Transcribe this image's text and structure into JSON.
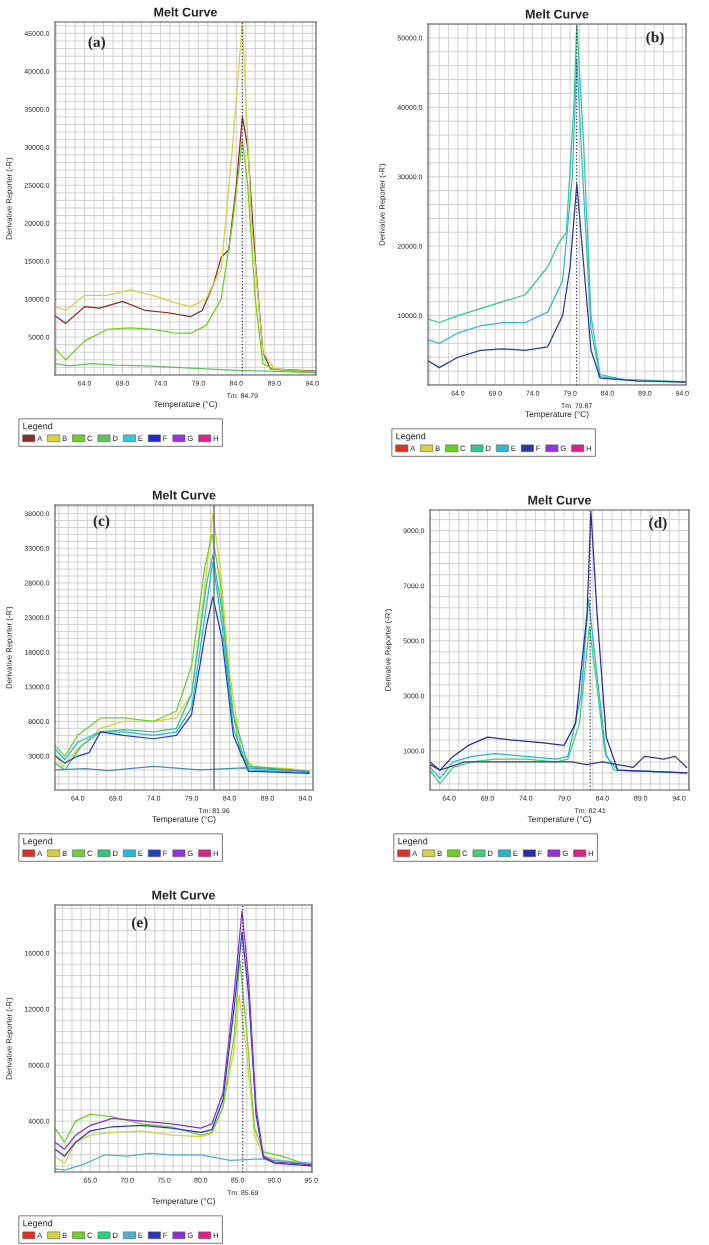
{
  "chart_data": [
    {
      "type": "line",
      "title": "Melt Curve",
      "xlabel": "Temperature (°C)",
      "ylabel": "Derivative Reporter (-R')",
      "legend_title": "Legend",
      "annotations": [
        "(a)"
      ],
      "grid": true,
      "legend": "bottom",
      "xlim": [
        60.1,
        94.5
      ],
      "ylim": [
        0,
        46500
      ],
      "xticks": [
        {
          "value": 64,
          "label": "64.0"
        },
        {
          "value": 69,
          "label": "69.0"
        },
        {
          "value": 74,
          "label": "74.0"
        },
        {
          "value": 79,
          "label": "79.0"
        },
        {
          "value": 84,
          "label": "84.0"
        },
        {
          "value": 89,
          "label": "89.0"
        },
        {
          "value": 94,
          "label": "94.0"
        }
      ],
      "yticks": [
        {
          "value": 5000,
          "label": "5000.0"
        },
        {
          "value": 10000,
          "label": "10000.0"
        },
        {
          "value": 15000,
          "label": "15000.0"
        },
        {
          "value": 20000,
          "label": "20000.0"
        },
        {
          "value": 25000,
          "label": "25000.0"
        },
        {
          "value": 30000,
          "label": "30000.0"
        },
        {
          "value": 35000,
          "label": "35000.0"
        },
        {
          "value": 40000,
          "label": "40000.0"
        },
        {
          "value": 45000,
          "label": "45000.0"
        }
      ],
      "ref_lines": [
        {
          "axis": "x",
          "value": 84.79,
          "label": "Tm: 84.79",
          "line_style": "dotted",
          "color": "#333366"
        }
      ],
      "series": [
        {
          "name": "A",
          "color": "#8b2a2a",
          "x": [
            60.1,
            61.5,
            64,
            66,
            69,
            72,
            75,
            78,
            79.5,
            81,
            82,
            83,
            84,
            84.8,
            85.5,
            86.5,
            87.5,
            88.5,
            94.5
          ],
          "values": [
            7800,
            6800,
            9000,
            8800,
            9700,
            8500,
            8200,
            7700,
            8500,
            12000,
            15500,
            16500,
            25000,
            34000,
            30000,
            15000,
            3000,
            800,
            500
          ]
        },
        {
          "name": "B",
          "color": "#d8d040",
          "x": [
            60.1,
            61.5,
            64,
            67,
            70,
            73,
            76,
            78,
            80,
            82,
            83.5,
            84.8,
            86,
            87.5,
            89,
            94.5
          ],
          "values": [
            9000,
            8500,
            10500,
            10500,
            11200,
            10500,
            9500,
            9000,
            10000,
            14000,
            30000,
            46500,
            20000,
            3000,
            800,
            400
          ]
        },
        {
          "name": "C",
          "color": "#6cd020",
          "x": [
            60.1,
            61.5,
            64,
            67,
            70,
            73,
            76,
            78,
            80,
            82,
            83.5,
            84.8,
            85.5,
            86.5,
            87.5,
            89,
            94.5
          ],
          "values": [
            3500,
            2000,
            4500,
            6000,
            6200,
            6000,
            5500,
            5500,
            6500,
            10000,
            20000,
            31000,
            25000,
            10000,
            1500,
            700,
            300
          ]
        },
        {
          "name": "D",
          "color": "#60c060",
          "x": [
            60.1,
            62,
            65,
            68,
            72,
            76,
            80,
            84,
            88,
            94.5
          ],
          "values": [
            1500,
            1200,
            1500,
            1300,
            1200,
            1000,
            800,
            600,
            500,
            300
          ]
        },
        {
          "name": "E",
          "color": "#30c8e8"
        },
        {
          "name": "F",
          "color": "#1c2ad0"
        },
        {
          "name": "G",
          "color": "#9a30e0"
        },
        {
          "name": "H",
          "color": "#e0208a"
        }
      ]
    },
    {
      "type": "line",
      "title": "Melt Curve",
      "xlabel": "Temperature (°C)",
      "ylabel": "Derivative Reporter (-R')",
      "legend_title": "Legend",
      "annotations": [
        "(b)"
      ],
      "grid": true,
      "legend": "bottom",
      "xlim": [
        60,
        94.5
      ],
      "ylim": [
        0,
        52000
      ],
      "xticks": [
        {
          "value": 64,
          "label": "64.0"
        },
        {
          "value": 69,
          "label": "69.0"
        },
        {
          "value": 74,
          "label": "74.0"
        },
        {
          "value": 79,
          "label": "79.0"
        },
        {
          "value": 84,
          "label": "84.0"
        },
        {
          "value": 89,
          "label": "89.0"
        },
        {
          "value": 94,
          "label": "94.0"
        }
      ],
      "yticks": [
        {
          "value": 10000,
          "label": "10000.0"
        },
        {
          "value": 20000,
          "label": "20000.0"
        },
        {
          "value": 30000,
          "label": "30000.0"
        },
        {
          "value": 40000,
          "label": "40000.0"
        },
        {
          "value": 50000,
          "label": "50000.0"
        }
      ],
      "ref_lines": [
        {
          "axis": "x",
          "value": 79.87,
          "label": "Tm: 79.87",
          "line_style": "dotted",
          "color": "#333366"
        }
      ],
      "series": [
        {
          "name": "A",
          "color": "#e03020"
        },
        {
          "name": "B",
          "color": "#d8d040"
        },
        {
          "name": "C",
          "color": "#6cd020"
        },
        {
          "name": "D",
          "color": "#30c890",
          "x": [
            60,
            61.5,
            64,
            67,
            70,
            73,
            76,
            77.5,
            78.5,
            79.5,
            79.9,
            80.8,
            81.8,
            83,
            86,
            94.5
          ],
          "values": [
            9500,
            9000,
            10000,
            11000,
            12000,
            13000,
            17000,
            20500,
            22000,
            40000,
            52000,
            35000,
            10000,
            1500,
            800,
            500
          ]
        },
        {
          "name": "E",
          "color": "#30b8d8",
          "x": [
            60,
            61.5,
            64,
            67,
            70,
            73,
            76,
            78,
            79.3,
            79.9,
            80.7,
            81.8,
            83,
            88,
            94.5
          ],
          "values": [
            6500,
            6000,
            7500,
            8500,
            9000,
            9000,
            10500,
            15000,
            30000,
            47000,
            30000,
            8000,
            1200,
            600,
            400
          ]
        },
        {
          "name": "F",
          "color": "#2a3aa0",
          "x": [
            60,
            61.5,
            64,
            67,
            70,
            73,
            76,
            78,
            79,
            79.9,
            80.6,
            81.8,
            83,
            88,
            94.5
          ],
          "values": [
            3500,
            2500,
            4000,
            5000,
            5200,
            5000,
            5500,
            10000,
            17000,
            29000,
            20000,
            5000,
            1000,
            600,
            400
          ]
        },
        {
          "name": "G",
          "color": "#9a30e0"
        },
        {
          "name": "H",
          "color": "#e0208a"
        }
      ]
    },
    {
      "type": "line",
      "title": "Melt Curve",
      "xlabel": "Temperature (°C)",
      "ylabel": "Derivative Reporter (-R')",
      "legend_title": "Legend",
      "annotations": [
        "(c)"
      ],
      "grid": true,
      "legend": "bottom",
      "xlim": [
        61,
        95
      ],
      "ylim": [
        -1900,
        39250
      ],
      "xticks": [
        {
          "value": 64,
          "label": "64.0"
        },
        {
          "value": 69,
          "label": "69.0"
        },
        {
          "value": 74,
          "label": "74.0"
        },
        {
          "value": 79,
          "label": "79.0"
        },
        {
          "value": 84,
          "label": "84.0"
        },
        {
          "value": 89,
          "label": "89.0"
        },
        {
          "value": 94,
          "label": "94.0"
        }
      ],
      "yticks": [
        {
          "value": 3000,
          "label": "3000.0"
        },
        {
          "value": 8000,
          "label": "8000.0"
        },
        {
          "value": 13000,
          "label": "13000.0"
        },
        {
          "value": 18000,
          "label": "18000.0"
        },
        {
          "value": 23000,
          "label": "23000.0"
        },
        {
          "value": 28000,
          "label": "28000.0"
        },
        {
          "value": 33000,
          "label": "33000.0"
        },
        {
          "value": 38000,
          "label": "38000.0"
        }
      ],
      "ref_lines": [
        {
          "axis": "x",
          "value": 81.96,
          "label": "Tm: 81.96",
          "line_style": "solid",
          "color": "#555588"
        }
      ],
      "series": [
        {
          "name": "A",
          "color": "#e03020"
        },
        {
          "name": "B",
          "color": "#d8d030",
          "x": [
            61,
            62,
            64,
            67,
            70,
            74,
            77,
            79,
            80.5,
            81.8,
            82.8,
            84,
            85.5,
            87,
            92,
            94.5
          ],
          "values": [
            3500,
            1500,
            4000,
            7000,
            8000,
            8000,
            8500,
            12000,
            25000,
            38000,
            30000,
            15000,
            4000,
            1500,
            1200,
            800
          ]
        },
        {
          "name": "C",
          "color": "#70d030",
          "x": [
            61,
            62.3,
            64,
            67,
            70,
            74,
            77,
            79,
            80.7,
            81.7,
            82.8,
            84,
            85.5,
            87,
            94.5
          ],
          "values": [
            4500,
            3000,
            6000,
            8500,
            8500,
            8000,
            9500,
            16000,
            30000,
            35000,
            28000,
            12000,
            3000,
            1500,
            800
          ]
        },
        {
          "name": "D",
          "color": "#30c880",
          "x": [
            61,
            62.3,
            64.5,
            67,
            70,
            74,
            77,
            79,
            81,
            81.8,
            83,
            84.5,
            86.5,
            94.5
          ],
          "values": [
            2000,
            1000,
            4500,
            6500,
            6800,
            6500,
            7000,
            12000,
            28000,
            32000,
            24000,
            9000,
            1500,
            700
          ]
        },
        {
          "name": "E",
          "color": "#20b8e0",
          "x": [
            61,
            62.3,
            64,
            67,
            70,
            74,
            77,
            79,
            81,
            81.8,
            83,
            84.5,
            86.5,
            94.5
          ],
          "values": [
            4000,
            2500,
            5000,
            6500,
            6500,
            6000,
            6500,
            10000,
            25000,
            31000,
            22000,
            7000,
            1000,
            600
          ]
        },
        {
          "name": "F",
          "color": "#2040c0",
          "x": [
            61,
            62.3,
            64,
            65.5,
            67,
            70,
            74,
            77,
            79,
            81,
            81.8,
            83,
            84.5,
            86.5,
            94.5
          ],
          "values": [
            3000,
            2000,
            3000,
            3500,
            6500,
            6000,
            5500,
            6000,
            9000,
            22000,
            26000,
            20000,
            6000,
            800,
            500
          ]
        },
        {
          "name": "G",
          "color": "#9a30e0"
        },
        {
          "name": "H",
          "color": "#e0208a"
        },
        {
          "color": "#4a8ab0",
          "x": [
            61,
            65,
            68,
            74,
            80,
            86,
            94.5
          ],
          "values": [
            1000,
            1200,
            900,
            1500,
            1000,
            1300,
            800
          ]
        }
      ]
    },
    {
      "type": "line",
      "title": "Melt Curve",
      "xlabel": "Temperature (°C)",
      "ylabel": "Derivative Reporter (-R')",
      "legend_title": "Legend",
      "annotations": [
        "(d)"
      ],
      "grid": true,
      "legend": "bottom",
      "xlim": [
        61.5,
        95.3
      ],
      "ylim": [
        -420,
        9750
      ],
      "xticks": [
        {
          "value": 64,
          "label": "64.0"
        },
        {
          "value": 69,
          "label": "69.0"
        },
        {
          "value": 74,
          "label": "74.0"
        },
        {
          "value": 79,
          "label": "79.0"
        },
        {
          "value": 84,
          "label": "84.0"
        },
        {
          "value": 89,
          "label": "89.0"
        },
        {
          "value": 94,
          "label": "94.0"
        }
      ],
      "yticks": [
        {
          "value": 1000,
          "label": "1000.0"
        },
        {
          "value": 3000,
          "label": "3000.0"
        },
        {
          "value": 5000,
          "label": "5000.0"
        },
        {
          "value": 7000,
          "label": "7000.0"
        },
        {
          "value": 9000,
          "label": "9000.0"
        }
      ],
      "ref_lines": [
        {
          "axis": "x",
          "value": 82.41,
          "label": "Tm: 82.41",
          "line_style": "dotted",
          "color": "#333366"
        }
      ],
      "series": [
        {
          "name": "A",
          "color": "#e03020"
        },
        {
          "name": "B",
          "color": "#d8d040"
        },
        {
          "name": "C",
          "color": "#6cd020"
        },
        {
          "name": "D",
          "color": "#40d070",
          "x": [
            61.5,
            62.8,
            64.5,
            67,
            70,
            74,
            78,
            79.5,
            81,
            82.3,
            83,
            84.3,
            85.5,
            95
          ],
          "values": [
            300,
            -200,
            400,
            600,
            700,
            700,
            600,
            700,
            2000,
            5500,
            4000,
            1000,
            300,
            200
          ]
        },
        {
          "name": "E",
          "color": "#20b8d0",
          "x": [
            61.5,
            62.8,
            64.5,
            67,
            70,
            74,
            78,
            79.5,
            81.2,
            82.2,
            83.2,
            84.5,
            86,
            95
          ],
          "values": [
            400,
            0,
            600,
            800,
            900,
            800,
            700,
            800,
            3000,
            6500,
            4000,
            800,
            300,
            200
          ]
        },
        {
          "name": "F",
          "color": "#2a2ab0",
          "x": [
            61.5,
            62.8,
            64.5,
            66.5,
            69,
            72,
            76,
            79,
            80.5,
            82,
            82.5,
            83.3,
            84.5,
            86,
            95
          ],
          "values": [
            600,
            300,
            800,
            1200,
            1500,
            1400,
            1300,
            1200,
            2000,
            6000,
            9700,
            6000,
            1500,
            300,
            200
          ]
        },
        {
          "name": "G",
          "color": "#9a30e0"
        },
        {
          "name": "H",
          "color": "#e0208a"
        },
        {
          "color": "#3a3a80",
          "x": [
            61.5,
            62.8,
            66,
            72,
            80,
            82,
            84,
            88,
            89.5,
            92,
            93.5,
            95
          ],
          "values": [
            500,
            300,
            600,
            600,
            600,
            500,
            600,
            400,
            800,
            700,
            800,
            400
          ]
        }
      ]
    },
    {
      "type": "line",
      "title": "Melt Curve",
      "xlabel": "Temperature (°C)",
      "ylabel": "Derivative Reporter (-R')",
      "legend_title": "Legend",
      "annotations": [
        "(e)"
      ],
      "grid": true,
      "legend": "bottom",
      "xlim": [
        60.2,
        95.1
      ],
      "ylim": [
        370,
        19430
      ],
      "xticks": [
        {
          "value": 65,
          "label": "65.0"
        },
        {
          "value": 70,
          "label": "70.0"
        },
        {
          "value": 75,
          "label": "75.0"
        },
        {
          "value": 80,
          "label": "80.0"
        },
        {
          "value": 85,
          "label": "85.0"
        },
        {
          "value": 90,
          "label": "90.0"
        },
        {
          "value": 95,
          "label": "95.0"
        }
      ],
      "yticks": [
        {
          "value": 4000,
          "label": "4000.0"
        },
        {
          "value": 8000,
          "label": "8000.0"
        },
        {
          "value": 12000,
          "label": "12000.0"
        },
        {
          "value": 16000,
          "label": "16000.0"
        }
      ],
      "ref_lines": [
        {
          "axis": "x",
          "value": 85.69,
          "label": "Tm: 85.69",
          "line_style": "dotted",
          "color": "#333366"
        }
      ],
      "series": [
        {
          "name": "A",
          "color": "#e03020"
        },
        {
          "name": "B",
          "color": "#d8d040",
          "x": [
            60.2,
            61.5,
            63,
            65,
            68,
            72,
            76,
            80,
            81.5,
            83,
            84.5,
            85.2,
            86.2,
            87.3,
            88.5,
            91,
            95
          ],
          "values": [
            1500,
            1000,
            2500,
            3000,
            3200,
            3300,
            3000,
            2900,
            3100,
            5000,
            9000,
            13000,
            9000,
            3000,
            1500,
            1200,
            800
          ]
        },
        {
          "name": "C",
          "color": "#70d030",
          "x": [
            60.2,
            61.5,
            63,
            65,
            68,
            72,
            76,
            80,
            81.5,
            83,
            84.5,
            85.3,
            86.3,
            87.3,
            88.5,
            91,
            95
          ],
          "values": [
            3500,
            2500,
            4000,
            4500,
            4300,
            3800,
            3600,
            3000,
            3200,
            5000,
            10000,
            15500,
            10000,
            3500,
            1800,
            1500,
            800
          ]
        },
        {
          "name": "D",
          "color": "#30d080"
        },
        {
          "name": "E",
          "color": "#50b0d0",
          "x": [
            60.2,
            61.5,
            64,
            67,
            70,
            73,
            76,
            80,
            84,
            88,
            90,
            95
          ],
          "values": [
            600,
            500,
            900,
            1600,
            1500,
            1700,
            1600,
            1600,
            1200,
            1300,
            1200,
            1000
          ]
        },
        {
          "name": "F",
          "color": "#2a38c0",
          "x": [
            60.2,
            61.5,
            63,
            65,
            68,
            72,
            76,
            80,
            81.5,
            83,
            84.5,
            85.6,
            86.5,
            87.5,
            88.5,
            90,
            95
          ],
          "values": [
            2000,
            1500,
            2500,
            3300,
            3600,
            3700,
            3500,
            3200,
            3400,
            5500,
            12000,
            17500,
            13000,
            4500,
            1400,
            1000,
            800
          ]
        },
        {
          "name": "G",
          "color": "#8a30d8",
          "x": [
            60.2,
            61.5,
            63,
            65,
            68,
            72,
            76,
            80,
            81.5,
            83,
            84.5,
            85.6,
            86.5,
            87.5,
            88.5,
            90,
            95
          ],
          "values": [
            2500,
            2000,
            3000,
            3700,
            4200,
            4000,
            3800,
            3500,
            3800,
            6000,
            13000,
            19000,
            14000,
            5000,
            1500,
            1100,
            900
          ]
        },
        {
          "name": "H",
          "color": "#e0208a"
        }
      ]
    }
  ]
}
